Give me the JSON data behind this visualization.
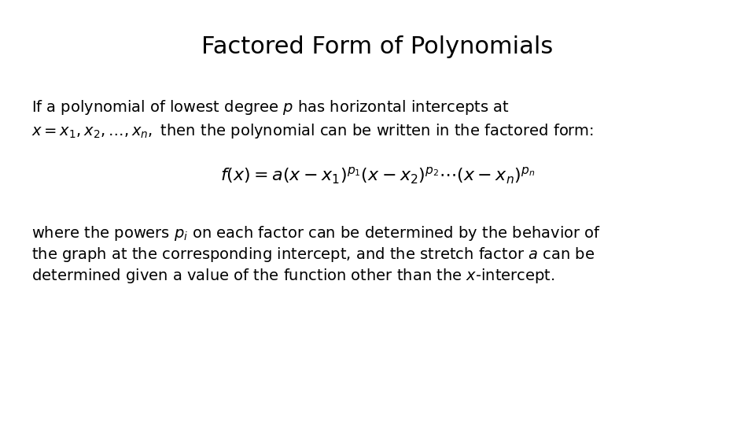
{
  "title": "Factored Form of Polynomials",
  "title_fontsize": 22,
  "title_fontweight": "normal",
  "background_color": "#ffffff",
  "text_color": "#000000",
  "fig_width": 9.6,
  "fig_height": 5.4,
  "body_fontsize": 14,
  "math_fontsize": 16,
  "line1": "If a polynomial of lowest degree $p$ has horizontal intercepts at",
  "line2_math": "$x = x_1, x_2, \\ldots, x_n,$ then the polynomial can be written in the factored form:",
  "formula": "$f(x) = a(x - x_1)^{p_1}(x - x_2)^{p_2}\\cdots (x - x_n)^{p_n}$",
  "line3": "where the powers $p_i$ on each factor can be determined by the behavior of",
  "line4": "the graph at the corresponding intercept, and the stretch factor $a$ can be",
  "line5": "determined given a value of the function other than the $x$-intercept."
}
